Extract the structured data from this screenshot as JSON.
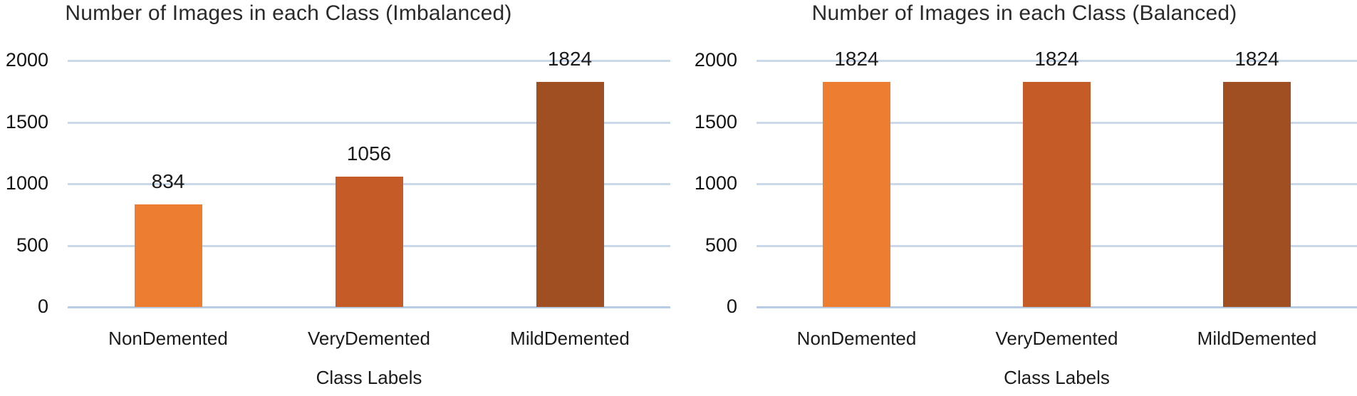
{
  "figure": {
    "background": "#FFFFFF"
  },
  "chart_data": [
    {
      "type": "bar",
      "title": "Number of Images in each Class (Imbalanced)",
      "xlabel": "Class Labels",
      "ylabel": "",
      "categories": [
        "NonDemented",
        "VeryDemented",
        "MildDemented"
      ],
      "values": [
        834,
        1056,
        1824
      ],
      "data_labels": [
        "834",
        "1056",
        "1824"
      ],
      "yticks": [
        0,
        500,
        1000,
        1500,
        2000
      ],
      "ylim": [
        0,
        2000
      ],
      "grid": true,
      "legend_position": "none",
      "bar_colors": [
        "#ED7D31",
        "#C55B26",
        "#A04F23"
      ]
    },
    {
      "type": "bar",
      "title": "Number of Images in each Class (Balanced)",
      "xlabel": "Class Labels",
      "ylabel": "",
      "categories": [
        "NonDemented",
        "VeryDemented",
        "MildDemented"
      ],
      "values": [
        1824,
        1824,
        1824
      ],
      "data_labels": [
        "1824",
        "1824",
        "1824"
      ],
      "yticks": [
        0,
        500,
        1000,
        1500,
        2000
      ],
      "ylim": [
        0,
        2000
      ],
      "grid": true,
      "legend_position": "none",
      "bar_colors": [
        "#ED7D31",
        "#C55B26",
        "#A04F23"
      ]
    }
  ],
  "style": {
    "gridline_color": "#CBD8EA",
    "baseline_color": "#B9CCE6",
    "text_color": "#1B1B1B",
    "title_color": "#2A2A2A"
  }
}
